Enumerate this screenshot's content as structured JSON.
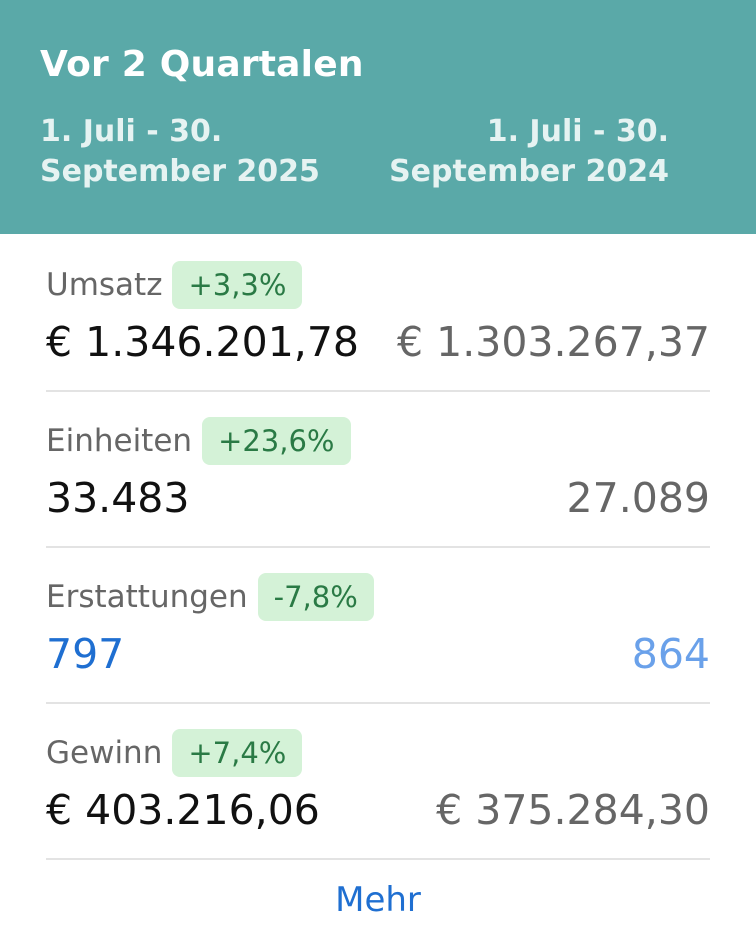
{
  "header": {
    "title": "Vor 2 Quartalen",
    "current_period_line1": "1. Juli - 30.",
    "current_period_line2": "September 2025",
    "previous_period_line1": "1. Juli - 30.",
    "previous_period_line2": "September 2024"
  },
  "metrics": [
    {
      "label": "Umsatz",
      "change": "+3,3%",
      "current": "€ 1.346.201,78",
      "previous": "€ 1.303.267,37"
    },
    {
      "label": "Einheiten",
      "change": "+23,6%",
      "current": "33.483",
      "previous": "27.089"
    },
    {
      "label": "Erstattungen",
      "change": "-7,8%",
      "current": "797",
      "previous": "864"
    },
    {
      "label": "Gewinn",
      "change": "+7,4%",
      "current": "€ 403.216,06",
      "previous": "€ 375.284,30"
    }
  ],
  "footer": {
    "more_label": "Mehr"
  },
  "colors": {
    "header_bg": "#5aa9a8",
    "badge_bg": "#d4f2d7",
    "badge_text": "#2a7a45",
    "link_blue": "#1f6fd1"
  }
}
